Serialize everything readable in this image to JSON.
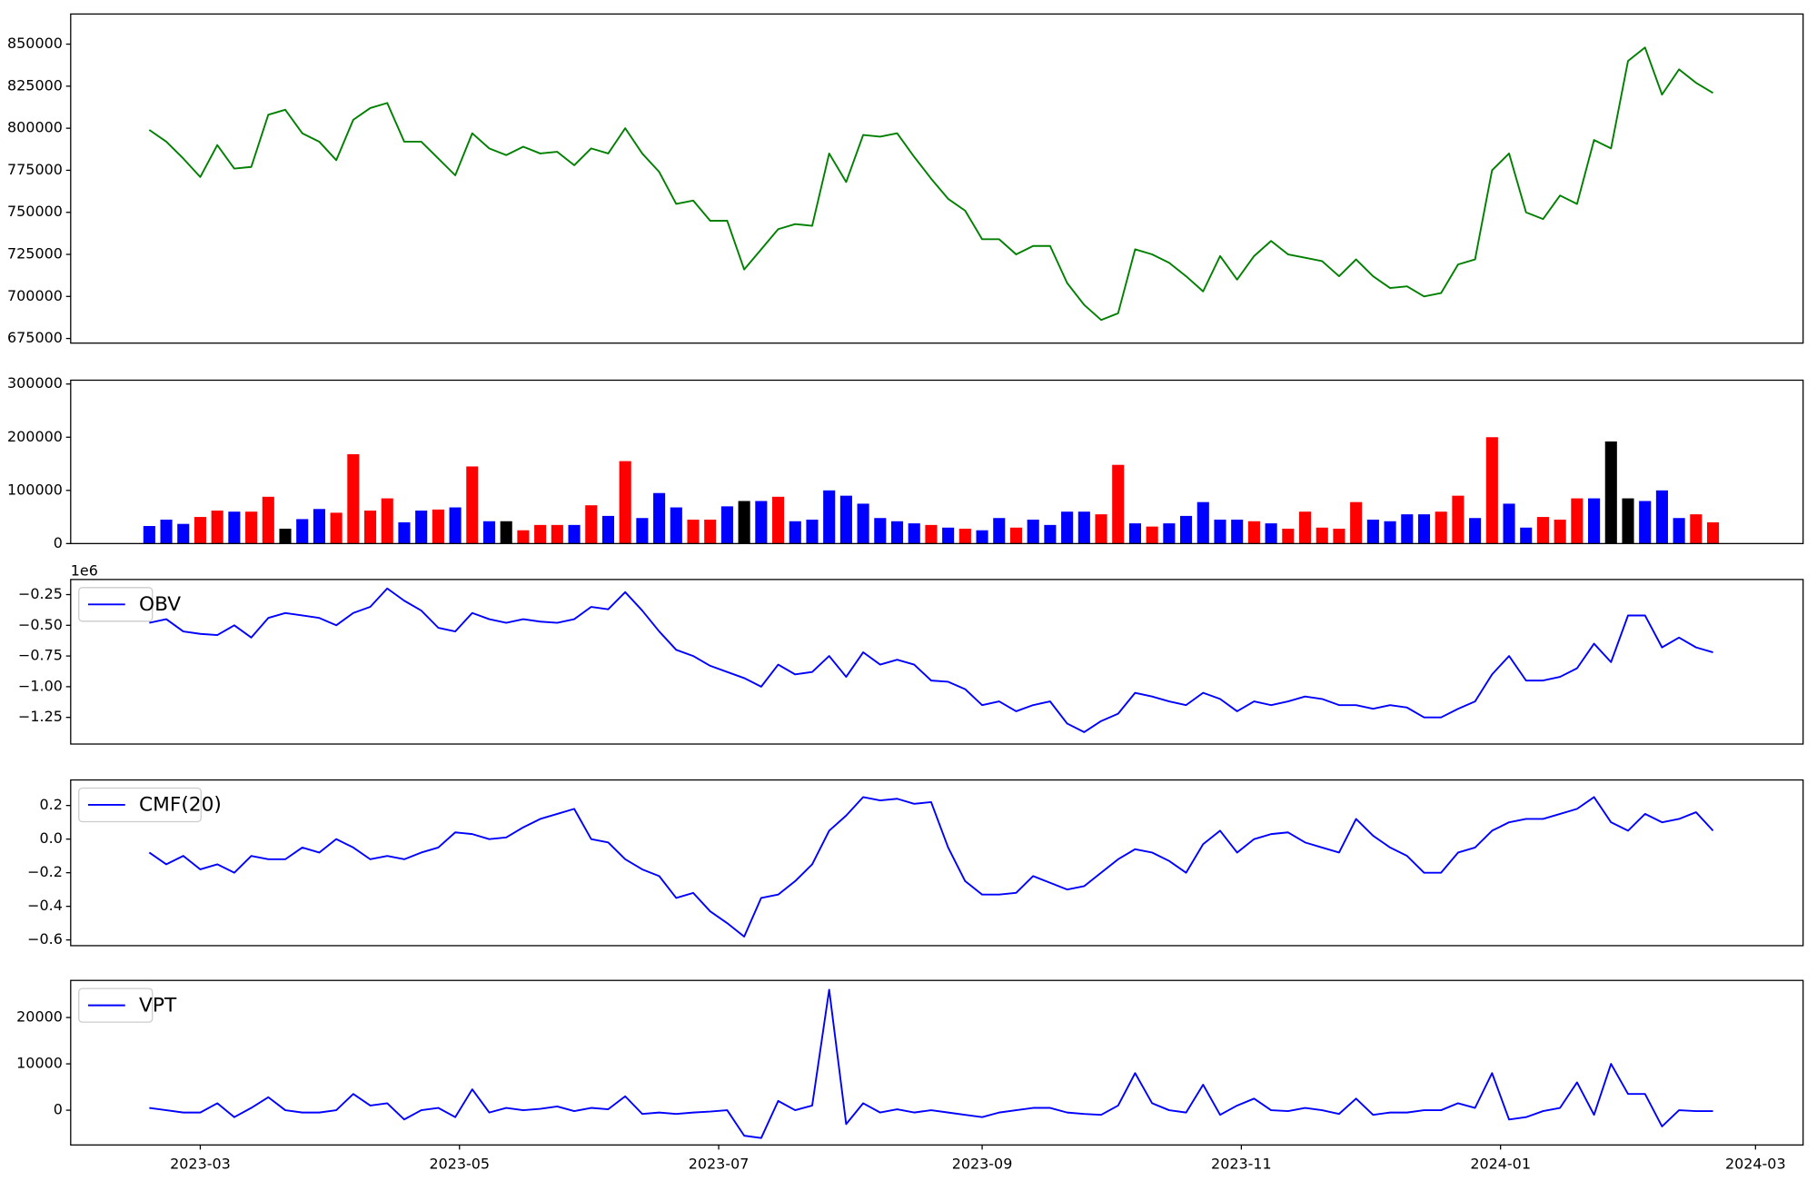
{
  "chart_data": [
    {
      "type": "line",
      "xlim": [
        19386.5,
        19794.2
      ],
      "ylim": [
        672250,
        867900
      ],
      "yticks": [
        675000,
        700000,
        725000,
        750000,
        775000,
        800000,
        825000,
        850000
      ],
      "x": [
        19405,
        19409,
        19413,
        19417,
        19421,
        19425,
        19429,
        19433,
        19437,
        19441,
        19445,
        19449,
        19453,
        19457,
        19461,
        19465,
        19469,
        19473,
        19477,
        19481,
        19485,
        19489,
        19493,
        19497,
        19501,
        19505,
        19509,
        19513,
        19517,
        19521,
        19525,
        19529,
        19533,
        19537,
        19541,
        19545,
        19549,
        19553,
        19557,
        19561,
        19565,
        19569,
        19573,
        19577,
        19581,
        19585,
        19589,
        19593,
        19597,
        19601,
        19605,
        19609,
        19613,
        19617,
        19621,
        19625,
        19629,
        19633,
        19637,
        19641,
        19645,
        19649,
        19653,
        19657,
        19661,
        19665,
        19669,
        19673,
        19677,
        19681,
        19685,
        19689,
        19693,
        19697,
        19701,
        19705,
        19709,
        19713,
        19717,
        19721,
        19725,
        19729,
        19733,
        19737,
        19741,
        19745,
        19749,
        19753,
        19757,
        19761,
        19765,
        19769,
        19773
      ],
      "series": [
        {
          "color": "green",
          "values": [
            799000,
            792000,
            782000,
            771000,
            790000,
            776000,
            777000,
            808000,
            811000,
            797000,
            792000,
            781000,
            805000,
            812000,
            815000,
            792000,
            792000,
            782000,
            772000,
            797000,
            788000,
            784000,
            789000,
            785000,
            786000,
            778000,
            788000,
            785000,
            800000,
            785000,
            774000,
            755000,
            757000,
            745000,
            745000,
            716000,
            728000,
            740000,
            743000,
            742000,
            785000,
            768000,
            796000,
            795000,
            797000,
            783000,
            770000,
            758000,
            751000,
            734000,
            734000,
            725000,
            730000,
            730000,
            708000,
            695000,
            686000,
            690000,
            728000,
            725000,
            720000,
            712000,
            703000,
            724000,
            710000,
            724000,
            733000,
            725000,
            723000,
            721000,
            712000,
            722000,
            712000,
            705000,
            706000,
            700000,
            702000,
            719000,
            722000,
            775000,
            785000,
            750000,
            746000,
            760000,
            755000,
            793000,
            788000,
            840000,
            848000,
            820000,
            835000,
            827000,
            821000
          ]
        }
      ]
    },
    {
      "type": "bar",
      "xlim": [
        19386.5,
        19794.2
      ],
      "ylim": [
        0,
        307200
      ],
      "yticks": [
        0,
        100000,
        200000,
        300000
      ],
      "x": [
        19405,
        19409,
        19413,
        19417,
        19421,
        19425,
        19429,
        19433,
        19437,
        19441,
        19445,
        19449,
        19453,
        19457,
        19461,
        19465,
        19469,
        19473,
        19477,
        19481,
        19485,
        19489,
        19493,
        19497,
        19501,
        19505,
        19509,
        19513,
        19517,
        19521,
        19525,
        19529,
        19533,
        19537,
        19541,
        19545,
        19549,
        19553,
        19557,
        19561,
        19565,
        19569,
        19573,
        19577,
        19581,
        19585,
        19589,
        19593,
        19597,
        19601,
        19605,
        19609,
        19613,
        19617,
        19621,
        19625,
        19629,
        19633,
        19637,
        19641,
        19645,
        19649,
        19653,
        19657,
        19661,
        19665,
        19669,
        19673,
        19677,
        19681,
        19685,
        19689,
        19693,
        19697,
        19701,
        19705,
        19709,
        19713,
        19717,
        19721,
        19725,
        19729,
        19733,
        19737,
        19741,
        19745,
        19749,
        19753,
        19757,
        19761,
        19765,
        19769,
        19773
      ],
      "values": [
        33000,
        45000,
        37000,
        50000,
        62000,
        60000,
        60000,
        88000,
        28000,
        46000,
        65000,
        58000,
        168000,
        62000,
        85000,
        40000,
        62000,
        64000,
        68000,
        145000,
        42000,
        42000,
        25000,
        35000,
        35000,
        35000,
        72000,
        52000,
        155000,
        48000,
        95000,
        68000,
        45000,
        45000,
        70000,
        80000,
        80000,
        88000,
        42000,
        45000,
        100000,
        90000,
        75000,
        48000,
        42000,
        38000,
        35000,
        30000,
        28000,
        25000,
        48000,
        30000,
        45000,
        35000,
        60000,
        60000,
        55000,
        148000,
        38000,
        32000,
        38000,
        52000,
        78000,
        45000,
        45000,
        42000,
        38000,
        28000,
        60000,
        30000,
        28000,
        78000,
        45000,
        42000,
        55000,
        55000,
        60000,
        90000,
        48000,
        200000,
        75000,
        30000,
        50000,
        45000,
        85000,
        85000,
        192000,
        85000,
        80000,
        100000,
        48000,
        55000,
        40000
      ],
      "colors": [
        "blue",
        "blue",
        "blue",
        "red",
        "red",
        "blue",
        "red",
        "red",
        "black",
        "blue",
        "blue",
        "red",
        "red",
        "red",
        "red",
        "blue",
        "blue",
        "red",
        "blue",
        "red",
        "blue",
        "black",
        "red",
        "red",
        "red",
        "blue",
        "red",
        "blue",
        "red",
        "blue",
        "blue",
        "blue",
        "red",
        "red",
        "blue",
        "black",
        "blue",
        "red",
        "blue",
        "blue",
        "blue",
        "blue",
        "blue",
        "blue",
        "blue",
        "blue",
        "red",
        "blue",
        "red",
        "blue",
        "blue",
        "red",
        "blue",
        "blue",
        "blue",
        "blue",
        "red",
        "red",
        "blue",
        "red",
        "blue",
        "blue",
        "blue",
        "blue",
        "blue",
        "red",
        "blue",
        "red",
        "red",
        "red",
        "red",
        "red",
        "blue",
        "blue",
        "blue",
        "blue",
        "red",
        "red",
        "blue",
        "red",
        "blue",
        "blue",
        "red",
        "red",
        "red",
        "blue",
        "black",
        "black",
        "blue",
        "blue",
        "blue",
        "red",
        "red"
      ]
    },
    {
      "type": "line",
      "xlim": [
        19386.5,
        19794.2
      ],
      "ylim": [
        -1.467,
        -0.127
      ],
      "y_offset_label": "1e6",
      "legend": "upper left",
      "yticks": [
        {
          "value": -1.25,
          "label": "−1.25"
        },
        {
          "value": -1.0,
          "label": "−1.00"
        },
        {
          "value": -0.75,
          "label": "−0.75"
        },
        {
          "value": -0.5,
          "label": "−0.50"
        },
        {
          "value": -0.25,
          "label": "−0.25"
        }
      ],
      "x": [
        19405,
        19409,
        19413,
        19417,
        19421,
        19425,
        19429,
        19433,
        19437,
        19441,
        19445,
        19449,
        19453,
        19457,
        19461,
        19465,
        19469,
        19473,
        19477,
        19481,
        19485,
        19489,
        19493,
        19497,
        19501,
        19505,
        19509,
        19513,
        19517,
        19521,
        19525,
        19529,
        19533,
        19537,
        19541,
        19545,
        19549,
        19553,
        19557,
        19561,
        19565,
        19569,
        19573,
        19577,
        19581,
        19585,
        19589,
        19593,
        19597,
        19601,
        19605,
        19609,
        19613,
        19617,
        19621,
        19625,
        19629,
        19633,
        19637,
        19641,
        19645,
        19649,
        19653,
        19657,
        19661,
        19665,
        19669,
        19673,
        19677,
        19681,
        19685,
        19689,
        19693,
        19697,
        19701,
        19705,
        19709,
        19713,
        19717,
        19721,
        19725,
        19729,
        19733,
        19737,
        19741,
        19745,
        19749,
        19753,
        19757,
        19761,
        19765,
        19769,
        19773
      ],
      "series": [
        {
          "name": "OBV",
          "color": "blue",
          "values": [
            -0.48,
            -0.45,
            -0.55,
            -0.57,
            -0.58,
            -0.5,
            -0.6,
            -0.44,
            -0.4,
            -0.42,
            -0.44,
            -0.5,
            -0.4,
            -0.35,
            -0.2,
            -0.3,
            -0.38,
            -0.52,
            -0.55,
            -0.4,
            -0.45,
            -0.48,
            -0.45,
            -0.47,
            -0.48,
            -0.45,
            -0.35,
            -0.37,
            -0.23,
            -0.38,
            -0.55,
            -0.7,
            -0.75,
            -0.83,
            -0.88,
            -0.93,
            -1.0,
            -0.82,
            -0.9,
            -0.88,
            -0.75,
            -0.92,
            -0.72,
            -0.82,
            -0.78,
            -0.82,
            -0.95,
            -0.96,
            -1.02,
            -1.15,
            -1.12,
            -1.2,
            -1.15,
            -1.12,
            -1.3,
            -1.37,
            -1.28,
            -1.22,
            -1.05,
            -1.08,
            -1.12,
            -1.15,
            -1.05,
            -1.1,
            -1.2,
            -1.12,
            -1.15,
            -1.12,
            -1.08,
            -1.1,
            -1.15,
            -1.15,
            -1.18,
            -1.15,
            -1.17,
            -1.25,
            -1.25,
            -1.18,
            -1.12,
            -0.9,
            -0.75,
            -0.95,
            -0.95,
            -0.92,
            -0.85,
            -0.65,
            -0.8,
            -0.42,
            -0.42,
            -0.68,
            -0.6,
            -0.68,
            -0.72
          ]
        }
      ]
    },
    {
      "type": "line",
      "xlim": [
        19386.5,
        19794.2
      ],
      "ylim": [
        -0.634,
        0.352
      ],
      "legend": "upper left",
      "yticks": [
        {
          "value": -0.6,
          "label": "−0.6"
        },
        {
          "value": -0.4,
          "label": "−0.4"
        },
        {
          "value": -0.2,
          "label": "−0.2"
        },
        {
          "value": 0,
          "label": "0.0"
        },
        0.2
      ],
      "x": [
        19405,
        19409,
        19413,
        19417,
        19421,
        19425,
        19429,
        19433,
        19437,
        19441,
        19445,
        19449,
        19453,
        19457,
        19461,
        19465,
        19469,
        19473,
        19477,
        19481,
        19485,
        19489,
        19493,
        19497,
        19501,
        19505,
        19509,
        19513,
        19517,
        19521,
        19525,
        19529,
        19533,
        19537,
        19541,
        19545,
        19549,
        19553,
        19557,
        19561,
        19565,
        19569,
        19573,
        19577,
        19581,
        19585,
        19589,
        19593,
        19597,
        19601,
        19605,
        19609,
        19613,
        19617,
        19621,
        19625,
        19629,
        19633,
        19637,
        19641,
        19645,
        19649,
        19653,
        19657,
        19661,
        19665,
        19669,
        19673,
        19677,
        19681,
        19685,
        19689,
        19693,
        19697,
        19701,
        19705,
        19709,
        19713,
        19717,
        19721,
        19725,
        19729,
        19733,
        19737,
        19741,
        19745,
        19749,
        19753,
        19757,
        19761,
        19765,
        19769,
        19773
      ],
      "series": [
        {
          "name": "CMF(20)",
          "color": "blue",
          "values": [
            -0.08,
            -0.15,
            -0.1,
            -0.18,
            -0.15,
            -0.2,
            -0.1,
            -0.12,
            -0.12,
            -0.05,
            -0.08,
            0.0,
            -0.05,
            -0.12,
            -0.1,
            -0.12,
            -0.08,
            -0.05,
            0.04,
            0.03,
            0.0,
            0.01,
            0.07,
            0.12,
            0.15,
            0.18,
            0.0,
            -0.02,
            -0.12,
            -0.18,
            -0.22,
            -0.35,
            -0.32,
            -0.43,
            -0.5,
            -0.58,
            -0.35,
            -0.33,
            -0.25,
            -0.15,
            0.05,
            0.14,
            0.25,
            0.23,
            0.24,
            0.21,
            0.22,
            -0.05,
            -0.25,
            -0.33,
            -0.33,
            -0.32,
            -0.22,
            -0.26,
            -0.3,
            -0.28,
            -0.2,
            -0.12,
            -0.06,
            -0.08,
            -0.13,
            -0.2,
            -0.03,
            0.05,
            -0.08,
            0.0,
            0.03,
            0.04,
            -0.02,
            -0.05,
            -0.08,
            0.12,
            0.02,
            -0.05,
            -0.1,
            -0.2,
            -0.2,
            -0.08,
            -0.05,
            0.05,
            0.1,
            0.12,
            0.12,
            0.15,
            0.18,
            0.25,
            0.1,
            0.05,
            0.15,
            0.1,
            0.12,
            0.16,
            0.05
          ]
        }
      ]
    },
    {
      "type": "line",
      "xlim": [
        19386.5,
        19794.2
      ],
      "ylim": [
        -7500,
        28000
      ],
      "legend": "upper left",
      "yticks": [
        0,
        10000,
        20000
      ],
      "xticks": [
        {
          "value": 19417,
          "label": "2023-03"
        },
        {
          "value": 19478,
          "label": "2023-05"
        },
        {
          "value": 19539,
          "label": "2023-07"
        },
        {
          "value": 19601,
          "label": "2023-09"
        },
        {
          "value": 19662,
          "label": "2023-11"
        },
        {
          "value": 19723,
          "label": "2024-01"
        },
        {
          "value": 19783,
          "label": "2024-03"
        }
      ],
      "x": [
        19405,
        19409,
        19413,
        19417,
        19421,
        19425,
        19429,
        19433,
        19437,
        19441,
        19445,
        19449,
        19453,
        19457,
        19461,
        19465,
        19469,
        19473,
        19477,
        19481,
        19485,
        19489,
        19493,
        19497,
        19501,
        19505,
        19509,
        19513,
        19517,
        19521,
        19525,
        19529,
        19533,
        19537,
        19541,
        19545,
        19549,
        19553,
        19557,
        19561,
        19565,
        19569,
        19573,
        19577,
        19581,
        19585,
        19589,
        19593,
        19597,
        19601,
        19605,
        19609,
        19613,
        19617,
        19621,
        19625,
        19629,
        19633,
        19637,
        19641,
        19645,
        19649,
        19653,
        19657,
        19661,
        19665,
        19669,
        19673,
        19677,
        19681,
        19685,
        19689,
        19693,
        19697,
        19701,
        19705,
        19709,
        19713,
        19717,
        19721,
        19725,
        19729,
        19733,
        19737,
        19741,
        19745,
        19749,
        19753,
        19757,
        19761,
        19765,
        19769,
        19773
      ],
      "series": [
        {
          "name": "VPT",
          "color": "blue",
          "values": [
            500,
            0,
            -500,
            -500,
            1500,
            -1500,
            500,
            2800,
            0,
            -500,
            -500,
            0,
            3500,
            1000,
            1500,
            -2000,
            0,
            500,
            -1500,
            4500,
            -500,
            500,
            0,
            300,
            800,
            -200,
            500,
            200,
            3000,
            -800,
            -500,
            -800,
            -500,
            -300,
            0,
            -5500,
            -6000,
            2000,
            0,
            1000,
            26000,
            -3000,
            1500,
            -500,
            200,
            -500,
            0,
            -500,
            -1000,
            -1500,
            -500,
            0,
            500,
            500,
            -500,
            -800,
            -1000,
            1000,
            8000,
            1500,
            0,
            -500,
            5500,
            -1000,
            1000,
            2500,
            0,
            -200,
            500,
            0,
            -800,
            2500,
            -1000,
            -500,
            -500,
            0,
            0,
            1500,
            500,
            8000,
            -2000,
            -1500,
            -200,
            500,
            6000,
            -1000,
            10000,
            3500,
            3500,
            -3500,
            0,
            -200,
            -200
          ]
        }
      ]
    }
  ]
}
